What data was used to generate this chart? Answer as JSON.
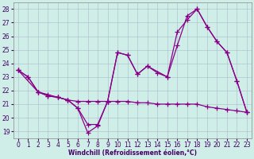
{
  "xlabel": "Windchill (Refroidissement éolien,°C)",
  "xlim": [
    -0.5,
    23.5
  ],
  "ylim": [
    18.5,
    28.5
  ],
  "yticks": [
    19,
    20,
    21,
    22,
    23,
    24,
    25,
    26,
    27,
    28
  ],
  "xticks": [
    0,
    1,
    2,
    3,
    4,
    5,
    6,
    7,
    8,
    9,
    10,
    11,
    12,
    13,
    14,
    15,
    16,
    17,
    18,
    19,
    20,
    21,
    22,
    23
  ],
  "bg_color": "#d0eee8",
  "line_color": "#880088",
  "grid_color": "#aabbcc",
  "line1_x": [
    0,
    1,
    2,
    3,
    4,
    5,
    6,
    7,
    8,
    9,
    10,
    11,
    12,
    13,
    14,
    15,
    16,
    17,
    18,
    19,
    20,
    21,
    22,
    23
  ],
  "line1_y": [
    23.5,
    23.0,
    21.9,
    21.6,
    21.5,
    21.3,
    20.7,
    19.5,
    19.5,
    21.2,
    24.8,
    24.6,
    23.2,
    23.8,
    23.3,
    23.0,
    25.3,
    27.5,
    28.0,
    26.7,
    25.6,
    24.8,
    22.7,
    20.4
  ],
  "line2_x": [
    0,
    2,
    3,
    4,
    5,
    6,
    7,
    8,
    9,
    10,
    11,
    12,
    13,
    15,
    16,
    17,
    18,
    19,
    20,
    21,
    22,
    23
  ],
  "line2_y": [
    23.5,
    21.9,
    21.6,
    21.5,
    21.3,
    20.7,
    18.9,
    19.4,
    21.2,
    24.8,
    24.6,
    23.2,
    23.8,
    23.0,
    26.3,
    27.2,
    28.0,
    26.7,
    25.6,
    24.8,
    22.7,
    20.4
  ],
  "line3_x": [
    0,
    1,
    2,
    3,
    4,
    5,
    6,
    7,
    8,
    9,
    10,
    11,
    12,
    13,
    14,
    15,
    16,
    17,
    18,
    19,
    20,
    21,
    22,
    23
  ],
  "line3_y": [
    23.5,
    23.0,
    21.9,
    21.7,
    21.5,
    21.3,
    21.2,
    21.2,
    21.2,
    21.2,
    21.2,
    21.2,
    21.1,
    21.1,
    21.0,
    21.0,
    21.0,
    21.0,
    21.0,
    20.8,
    20.7,
    20.6,
    20.5,
    20.4
  ],
  "xlabel_color": "#440066",
  "xlabel_fontsize": 5.5,
  "tick_fontsize": 5.5,
  "tick_color": "#440066"
}
